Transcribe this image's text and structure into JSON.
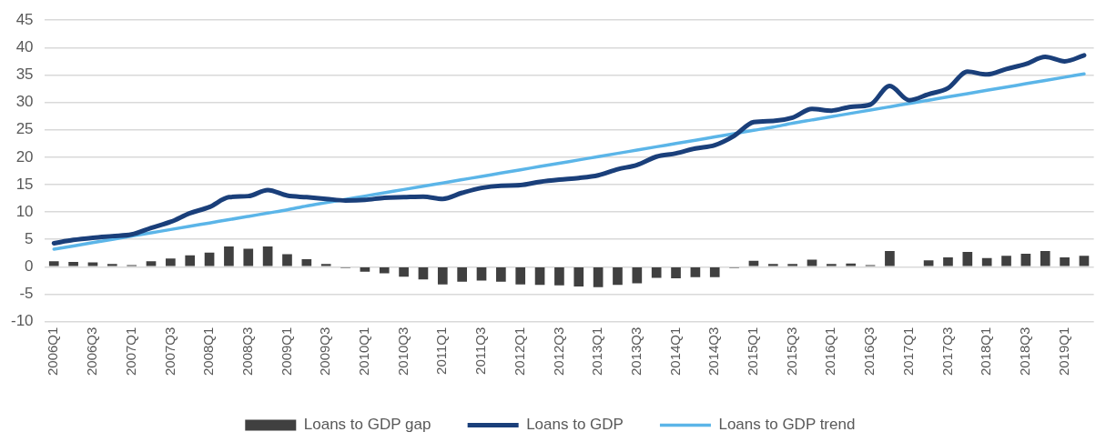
{
  "chart_data": {
    "type": "bar",
    "categories": [
      "2006Q1",
      null,
      "2006Q3",
      null,
      "2007Q1",
      null,
      "2007Q3",
      null,
      "2008Q1",
      null,
      "2008Q3",
      null,
      "2009Q1",
      null,
      "2009Q3",
      null,
      "2010Q1",
      null,
      "2010Q3",
      null,
      "2011Q1",
      null,
      "2011Q3",
      null,
      "2012Q1",
      null,
      "2012Q3",
      null,
      "2013Q1",
      null,
      "2013Q3",
      null,
      "2014Q1",
      null,
      "2014Q3",
      null,
      "2015Q1",
      null,
      "2015Q3",
      null,
      "2016Q1",
      null,
      "2016Q3",
      null,
      "2017Q1",
      null,
      "2017Q3",
      null,
      "2018Q1",
      null,
      "2018Q3",
      null,
      "2019Q1",
      null
    ],
    "series": [
      {
        "name": "Loans to GDP gap",
        "color": "#404040",
        "values": [
          1.0,
          0.9,
          0.8,
          0.5,
          0.3,
          1.0,
          1.5,
          2.1,
          2.6,
          3.7,
          3.3,
          3.7,
          2.3,
          1.4,
          0.5,
          -0.2,
          -0.9,
          -1.2,
          -1.8,
          -2.3,
          -3.2,
          -2.7,
          -2.5,
          -2.7,
          -3.2,
          -3.3,
          -3.4,
          -3.6,
          -3.7,
          -3.3,
          -3.0,
          -2.0,
          -2.1,
          -1.9,
          -1.9,
          -0.2,
          1.1,
          0.5,
          0.5,
          1.3,
          0.5,
          0.6,
          0.3,
          2.9,
          0,
          1.2,
          1.7,
          2.7,
          1.6,
          2.0,
          2.4,
          2.9,
          1.7,
          2.0
        ]
      },
      {
        "name": "Loans to GDP",
        "type": "line",
        "color": "#1a3f7a",
        "values": [
          4.3,
          4.9,
          5.3,
          5.6,
          5.9,
          7.1,
          8.2,
          9.8,
          10.9,
          12.7,
          12.9,
          14.0,
          13.0,
          12.7,
          12.4,
          12.1,
          12.2,
          12.6,
          12.7,
          12.8,
          12.4,
          13.5,
          14.4,
          14.8,
          14.9,
          15.5,
          15.9,
          16.2,
          16.7,
          17.8,
          18.6,
          20.1,
          20.7,
          21.6,
          22.2,
          23.9,
          26.4,
          26.6,
          27.2,
          28.8,
          28.5,
          29.2,
          29.6,
          33.0,
          30.4,
          31.5,
          32.6,
          35.6,
          35.1,
          36.1,
          37.0,
          38.3,
          37.5,
          38.6
        ]
      },
      {
        "name": "Loans to GDP trend",
        "type": "line",
        "color": "#5bb5e8",
        "values": [
          3.2,
          3.8,
          4.4,
          5.0,
          5.6,
          6.2,
          6.8,
          7.4,
          8.0,
          8.6,
          9.2,
          9.8,
          10.4,
          11.1,
          11.7,
          12.3,
          12.9,
          13.5,
          14.1,
          14.7,
          15.3,
          15.9,
          16.5,
          17.1,
          17.7,
          18.3,
          18.9,
          19.5,
          20.1,
          20.7,
          21.3,
          21.9,
          22.5,
          23.1,
          23.7,
          24.3,
          24.9,
          25.5,
          26.2,
          26.8,
          27.4,
          28.0,
          28.6,
          29.2,
          29.8,
          30.4,
          31.0,
          31.6,
          32.2,
          32.8,
          33.4,
          34.0,
          34.6,
          35.2
        ]
      }
    ],
    "ylim": [
      -10,
      45
    ],
    "yticks": [
      -10,
      -5,
      0,
      5,
      10,
      15,
      20,
      25,
      30,
      35,
      40,
      45
    ],
    "grid": "y",
    "legend": "bottom"
  }
}
